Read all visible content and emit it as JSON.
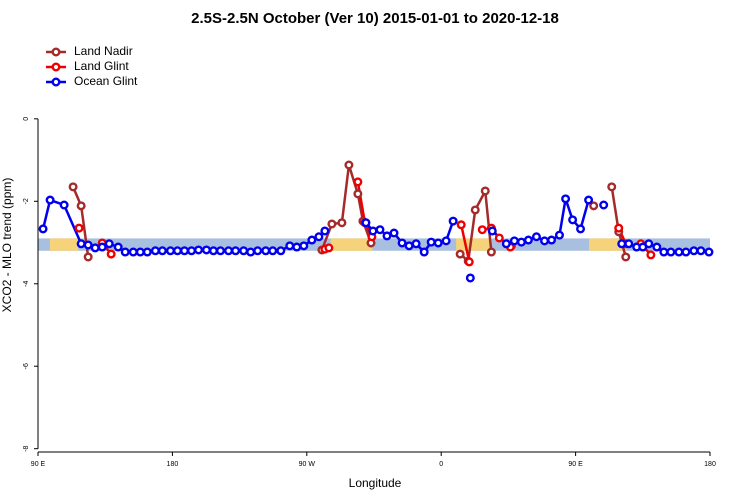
{
  "chart_data": {
    "type": "line",
    "title": "2.5S-2.5N October (Ver 10)   2015-01-01 to 2020-12-18",
    "x_label": "Longitude",
    "y_label": "XCO2 - MLO trend (ppm)",
    "xlim": [
      90,
      540
    ],
    "ylim": [
      -8.08,
      1.96
    ],
    "xticks": [
      {
        "value": 90,
        "label": "90 E"
      },
      180,
      {
        "value": 270,
        "label": "90 W"
      },
      {
        "value": 360,
        "label": "0"
      },
      {
        "value": 450,
        "label": "90 E"
      },
      {
        "value": 540,
        "label": "180"
      }
    ],
    "yticks": [
      -8,
      -6,
      -4,
      -2,
      0
    ],
    "legend": "top-left",
    "band": {
      "ymin": -3.2,
      "ymax": -2.9,
      "ocean_color": "#a9bfdf",
      "land_color": "#f6d27a",
      "land": [
        [
          98,
          117
        ],
        [
          286,
          314
        ],
        [
          370,
          394
        ],
        [
          459,
          484
        ]
      ]
    },
    "series": [
      {
        "name": "Land Nadir",
        "color": "#a52a2a",
        "x": [
          113.5,
          118.9,
          123.6,
          null,
          280.1,
          286.8,
          293.5,
          298.2,
          304.2,
          307.6,
          313,
          null,
          372.7,
          378.1,
          382.8,
          389.5,
          393.6,
          null,
          407,
          null,
          462.1,
          null,
          474.2,
          478.9,
          483.6
        ],
        "values": [
          -1.65,
          -2.11,
          -3.35,
          null,
          -3.18,
          -2.55,
          -2.52,
          -1.12,
          -1.82,
          -2.48,
          -3.01,
          null,
          -3.28,
          -3.45,
          -2.21,
          -1.75,
          -3.23,
          null,
          -3.08,
          null,
          -2.11,
          null,
          -1.65,
          -2.74,
          -3.35
        ]
      },
      {
        "name": "Land Glint",
        "color": "#ee0000",
        "x": [
          117.5,
          null,
          133,
          139,
          null,
          282.1,
          284.8,
          null,
          304.2,
          308.9,
          313.6,
          null,
          373.4,
          378.8,
          null,
          387.5,
          393.6,
          398.9,
          406.3,
          null,
          478.9,
          483.6,
          null,
          493.7,
          500.4
        ],
        "values": [
          -2.65,
          null,
          -3.01,
          -3.28,
          null,
          -3.16,
          -3.13,
          null,
          -1.53,
          -2.52,
          -2.86,
          null,
          -2.57,
          -3.47,
          null,
          -2.69,
          -2.65,
          -2.89,
          -3.11,
          null,
          -2.65,
          -3.03,
          null,
          -3.03,
          -3.3
        ]
      },
      {
        "name": "Ocean Glint",
        "color": "#0000ee",
        "x": [
          93.4,
          98.1,
          107.5,
          118.9,
          123.6,
          128.3,
          133,
          137.7,
          143.7,
          148.4,
          153.8,
          158.5,
          163.2,
          168.6,
          173.3,
          178.7,
          183.4,
          188.1,
          192.8,
          197.5,
          202.8,
          207.5,
          212.2,
          217.6,
          222.3,
          227.7,
          232.4,
          237.1,
          242.5,
          247.2,
          252.6,
          258.6,
          263.3,
          268,
          273.4,
          278.1,
          282.1,
          null,
          309.6,
          314.3,
          319,
          323.7,
          328.4,
          333.8,
          338.5,
          343.2,
          348.6,
          353.3,
          358,
          363.3,
          368,
          null,
          379.5,
          null,
          394.2,
          403.6,
          409,
          413.7,
          418.4,
          423.8,
          429.2,
          433.9,
          439.2,
          443.3,
          448,
          453.3,
          458.7,
          null,
          468.8,
          null,
          480.9,
          485.6,
          490.9,
          495,
          499,
          504.4,
          509.1,
          513.8,
          519.2,
          523.9,
          529.2,
          533.9,
          539.3
        ],
        "values": [
          -2.67,
          -1.97,
          -2.09,
          -3.03,
          -3.06,
          -3.13,
          -3.11,
          -3.03,
          -3.11,
          -3.23,
          -3.23,
          -3.23,
          -3.23,
          -3.2,
          -3.2,
          -3.2,
          -3.2,
          -3.2,
          -3.2,
          -3.18,
          -3.18,
          -3.2,
          -3.2,
          -3.2,
          -3.2,
          -3.2,
          -3.23,
          -3.2,
          -3.2,
          -3.2,
          -3.2,
          -3.08,
          -3.11,
          -3.08,
          -2.94,
          -2.86,
          -2.72,
          null,
          -2.52,
          -2.72,
          -2.69,
          -2.84,
          -2.77,
          -3.01,
          -3.08,
          -3.03,
          -3.23,
          -2.99,
          -3.01,
          -2.96,
          -2.48,
          null,
          -3.86,
          null,
          -2.72,
          -3.03,
          -2.96,
          -2.99,
          -2.94,
          -2.86,
          -2.96,
          -2.94,
          -2.82,
          -1.94,
          -2.45,
          -2.67,
          -1.97,
          null,
          -2.09,
          null,
          -3.03,
          -3.03,
          -3.11,
          -3.11,
          -3.03,
          -3.11,
          -3.23,
          -3.23,
          -3.23,
          -3.23,
          -3.2,
          -3.2,
          -3.23
        ]
      }
    ]
  }
}
